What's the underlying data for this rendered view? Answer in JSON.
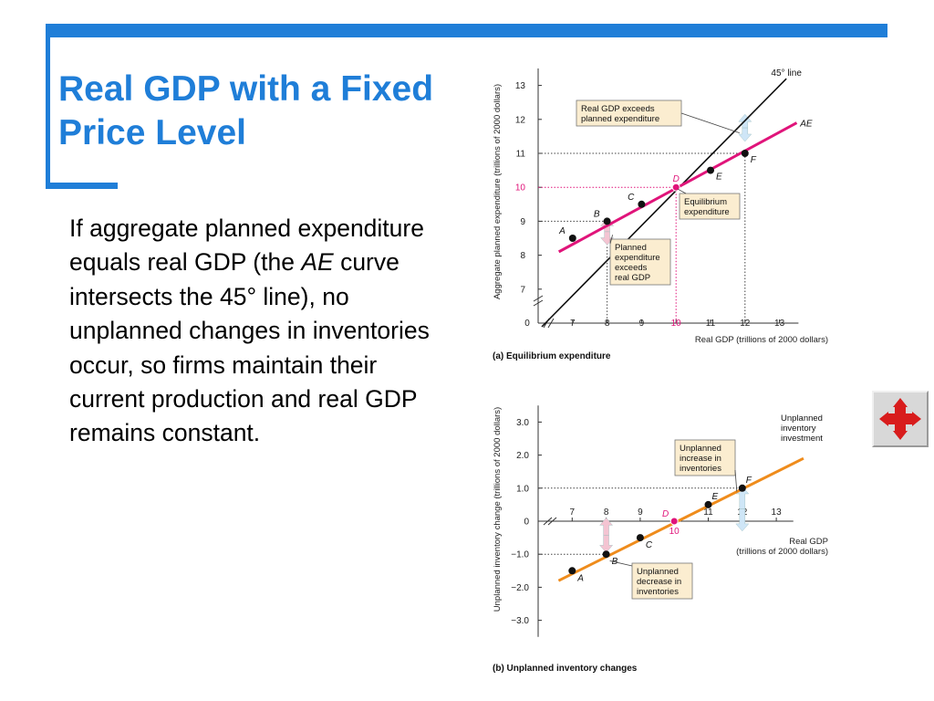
{
  "slide": {
    "title": "Real GDP with a Fixed Price Level",
    "body": {
      "part1": "If aggregate planned expenditure equals real GDP (the ",
      "ae": "AE",
      "part2": " curve intersects the 45° line), no unplanned changes in inventories occur, so firms maintain their current production and real GDP remains constant."
    }
  },
  "colors": {
    "accent": "#1f7ed8",
    "ae_line": "#e0147a",
    "inventory_line": "#ef8c1c",
    "equilibrium": "#e0147a"
  },
  "icons": {
    "nav": "move-arrows-icon"
  },
  "chart_data": [
    {
      "type": "line",
      "caption": "(a) Equilibrium expenditure",
      "xlabel": "Real GDP (trillions of 2000 dollars)",
      "ylabel": "Aggregate planned expenditure (trillions of 2000 dollars)",
      "xlim": [
        6,
        14
      ],
      "ylim": [
        6,
        13.5
      ],
      "xticks": [
        "7",
        "8",
        "9",
        "10",
        "11",
        "12",
        "13"
      ],
      "yticks": [
        "7",
        "8",
        "9",
        "10",
        "11",
        "12",
        "13"
      ],
      "origin_label": "0",
      "series": [
        {
          "name": "45° line",
          "x": [
            6,
            13.2
          ],
          "y": [
            6,
            13.2
          ]
        },
        {
          "name": "AE",
          "x": [
            6.6,
            13.5
          ],
          "y": [
            8.1,
            11.9
          ]
        }
      ],
      "points": [
        {
          "label": "A",
          "x": 7,
          "y": 8.5
        },
        {
          "label": "B",
          "x": 8,
          "y": 9
        },
        {
          "label": "C",
          "x": 9,
          "y": 9.5
        },
        {
          "label": "D",
          "x": 10,
          "y": 10
        },
        {
          "label": "E",
          "x": 11,
          "y": 10.5
        },
        {
          "label": "F",
          "x": 12,
          "y": 11
        }
      ],
      "annotations": {
        "exceeds": [
          "Real GDP exceeds",
          "planned expenditure"
        ],
        "equilibrium": [
          "Equilibrium",
          "expenditure"
        ],
        "planned": [
          "Planned",
          "expenditure",
          "exceeds",
          "real GDP"
        ]
      }
    },
    {
      "type": "line",
      "caption": "(b) Unplanned inventory changes",
      "xlabel": [
        "Real GDP",
        "(trillions of 2000 dollars)"
      ],
      "ylabel": "Unplanned inventory change (trillions of 2000 dollars)",
      "xlim": [
        6,
        14
      ],
      "ylim": [
        -3.5,
        3.5
      ],
      "xticks": [
        "7",
        "8",
        "9",
        "10",
        "11",
        "12",
        "13"
      ],
      "yticks": [
        "3.0",
        "2.0",
        "1.0",
        "0",
        "−1.0",
        "−2.0",
        "−3.0"
      ],
      "series": [
        {
          "name": "Unplanned inventory investment",
          "x": [
            6.6,
            13.8
          ],
          "y": [
            -1.8,
            1.9
          ]
        }
      ],
      "points": [
        {
          "label": "A",
          "x": 7,
          "y": -1.5
        },
        {
          "label": "B",
          "x": 8,
          "y": -1.0
        },
        {
          "label": "C",
          "x": 9,
          "y": -0.5
        },
        {
          "label": "D",
          "x": 10,
          "y": 0
        },
        {
          "label": "E",
          "x": 11,
          "y": 0.5
        },
        {
          "label": "F",
          "x": 12,
          "y": 1.0
        }
      ],
      "annotations": {
        "increase": [
          "Unplanned",
          "increase in",
          "inventories"
        ],
        "decrease": [
          "Unplanned",
          "decrease in",
          "inventories"
        ],
        "series_label": [
          "Unplanned",
          "inventory",
          "investment"
        ]
      }
    }
  ]
}
